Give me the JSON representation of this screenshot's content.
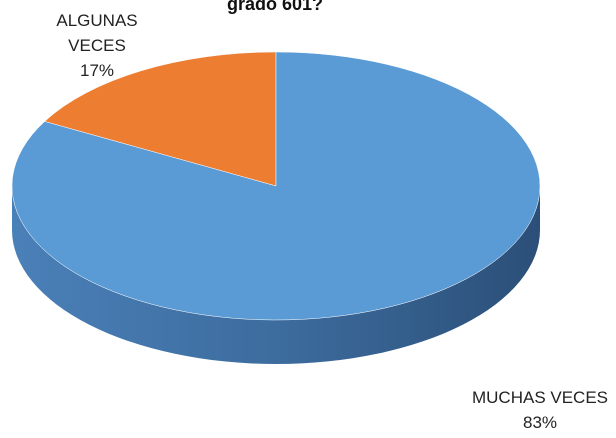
{
  "chart_data": {
    "type": "pie3d",
    "title": "grado 601?",
    "categories": [
      "ALGUNAS VECES",
      "MUCHAS VECES"
    ],
    "values": [
      17,
      83
    ],
    "value_labels": [
      "17%",
      "83%"
    ],
    "colors": [
      "#ed7d31",
      "#5b9bd5"
    ]
  }
}
